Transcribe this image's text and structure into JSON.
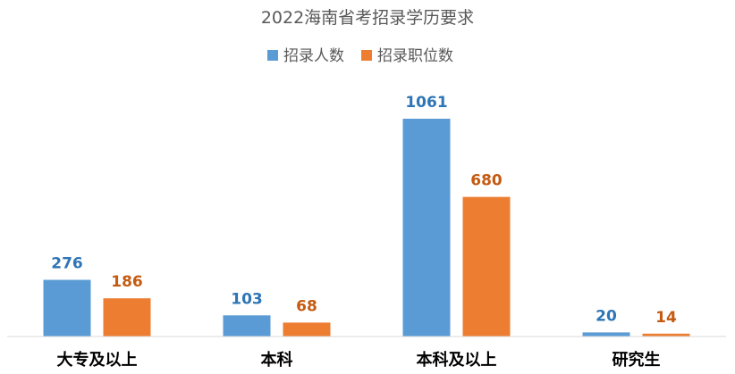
{
  "chart_data": {
    "type": "bar",
    "title": "2022海南省考招录学历要求",
    "categories": [
      "大专及以上",
      "本科",
      "本科及以上",
      "研究生"
    ],
    "series": [
      {
        "name": "招录人数",
        "values": [
          276,
          103,
          1061,
          20
        ],
        "color": "#5B9BD5",
        "label_color": "#2E75B6"
      },
      {
        "name": "招录职位数",
        "values": [
          186,
          68,
          680,
          14
        ],
        "color": "#ED7D31",
        "label_color": "#C55A11"
      }
    ],
    "ylim": [
      0,
      1061
    ],
    "legend": "top-center",
    "grid": false,
    "xlabel": "",
    "ylabel": ""
  }
}
